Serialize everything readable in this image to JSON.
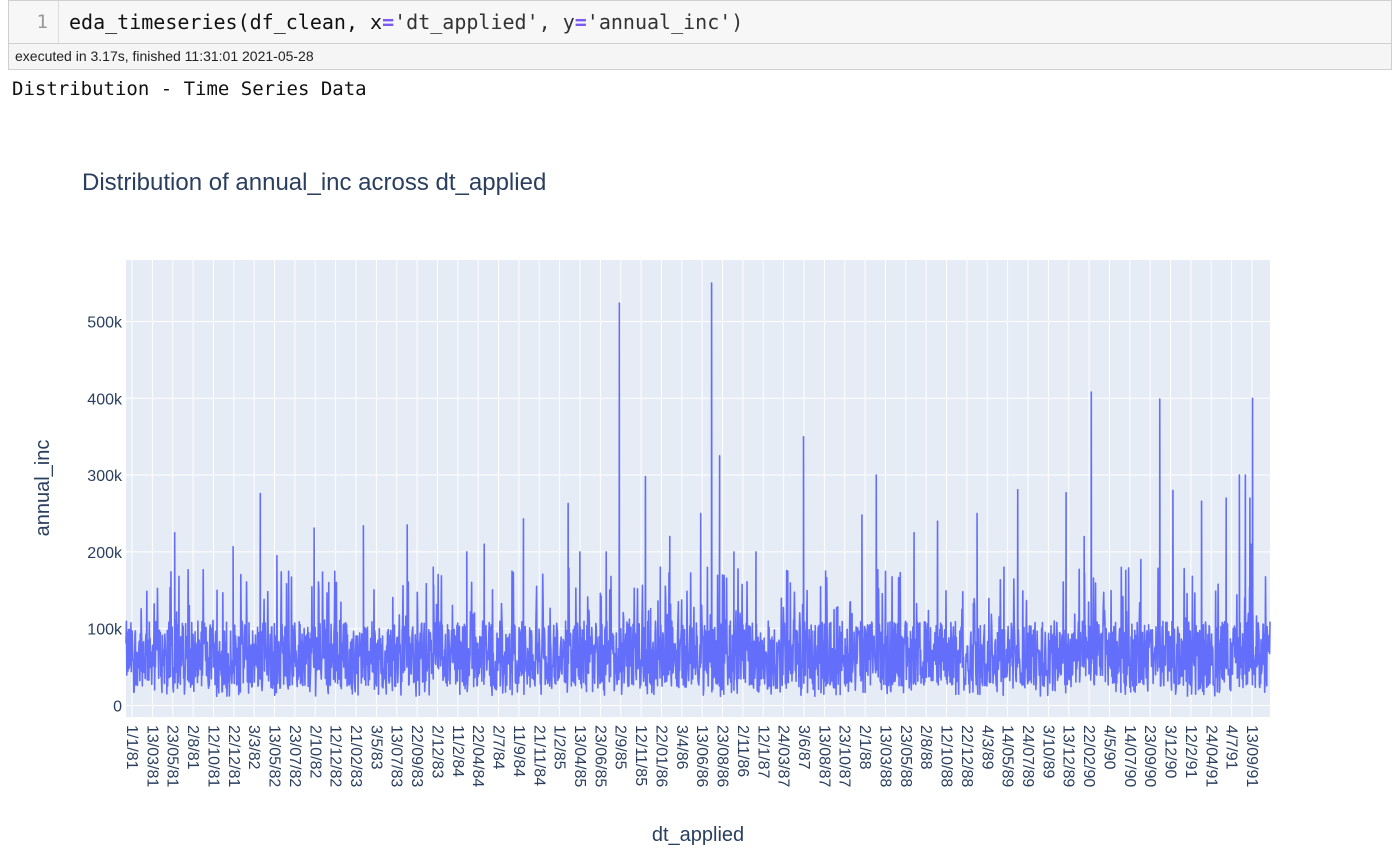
{
  "cell": {
    "line_number": "1",
    "code": {
      "func": "eda_timeseries(df_clean, x",
      "eq1": "=",
      "mid": "'dt_applied', y",
      "eq2": "=",
      "tail": "'annual_inc')"
    },
    "exec_info": "executed in 3.17s, finished 11:31:01 2021-05-28"
  },
  "output": {
    "heading": "Distribution - Time Series Data"
  },
  "colors": {
    "plot_bg": "#e5ecf6",
    "grid": "#ffffff",
    "line": "#636efa",
    "text": "#2a3f5f"
  },
  "chart_data": {
    "type": "line",
    "title": "Distribution of annual_inc across dt_applied",
    "xlabel": "dt_applied",
    "ylabel": "annual_inc",
    "ylim": [
      -15000,
      580000
    ],
    "y_ticks": [
      "0",
      "100k",
      "200k",
      "300k",
      "400k",
      "500k"
    ],
    "y_tick_values": [
      0,
      100000,
      200000,
      300000,
      400000,
      500000
    ],
    "x_tick_labels": [
      "1/1/81",
      "13/03/81",
      "23/05/81",
      "2/8/81",
      "12/10/81",
      "22/12/81",
      "3/3/82",
      "13/05/82",
      "23/07/82",
      "2/10/82",
      "12/12/82",
      "21/02/83",
      "3/5/83",
      "13/07/83",
      "22/09/83",
      "2/12/83",
      "11/2/84",
      "22/04/84",
      "2/7/84",
      "11/9/84",
      "21/11/84",
      "1/2/85",
      "13/04/85",
      "23/06/85",
      "2/9/85",
      "12/11/85",
      "22/01/86",
      "3/4/86",
      "13/06/86",
      "23/08/86",
      "2/11/86",
      "12/1/87",
      "24/03/87",
      "3/6/87",
      "13/08/87",
      "23/10/87",
      "2/1/88",
      "13/03/88",
      "23/05/88",
      "2/8/88",
      "12/10/88",
      "22/12/88",
      "4/3/89",
      "14/05/89",
      "24/07/89",
      "3/10/89",
      "13/12/89",
      "22/02/90",
      "4/5/90",
      "14/07/90",
      "23/09/90",
      "3/12/90",
      "12/2/91",
      "24/04/91",
      "4/7/91",
      "13/09/91"
    ],
    "x_range": [
      "1981-01-01",
      "1991-12-10"
    ],
    "series": [
      {
        "spikes": [
          {
            "x": "1981-06-20",
            "y": 225000
          },
          {
            "x": "1981-07-05",
            "y": 168000
          },
          {
            "x": "1981-11-15",
            "y": 150000
          },
          {
            "x": "1982-01-10",
            "y": 207000
          },
          {
            "x": "1982-04-15",
            "y": 276000
          },
          {
            "x": "1982-06-12",
            "y": 195000
          },
          {
            "x": "1982-10-20",
            "y": 231000
          },
          {
            "x": "1982-12-10",
            "y": 160000
          },
          {
            "x": "1983-04-10",
            "y": 234000
          },
          {
            "x": "1983-09-10",
            "y": 235000
          },
          {
            "x": "1983-12-10",
            "y": 180000
          },
          {
            "x": "1984-04-05",
            "y": 200000
          },
          {
            "x": "1984-06-05",
            "y": 210000
          },
          {
            "x": "1984-09-10",
            "y": 175000
          },
          {
            "x": "1984-10-20",
            "y": 243000
          },
          {
            "x": "1985-03-25",
            "y": 263000
          },
          {
            "x": "1985-05-05",
            "y": 200000
          },
          {
            "x": "1985-08-05",
            "y": 200000
          },
          {
            "x": "1985-09-20",
            "y": 524000
          },
          {
            "x": "1985-12-20",
            "y": 298000
          },
          {
            "x": "1986-02-10",
            "y": 180000
          },
          {
            "x": "1986-03-15",
            "y": 220000
          },
          {
            "x": "1986-07-01",
            "y": 250000
          },
          {
            "x": "1986-08-08",
            "y": 550000
          },
          {
            "x": "1986-09-05",
            "y": 325000
          },
          {
            "x": "1986-10-25",
            "y": 200000
          },
          {
            "x": "1987-01-10",
            "y": 200000
          },
          {
            "x": "1987-05-01",
            "y": 175000
          },
          {
            "x": "1987-06-25",
            "y": 350000
          },
          {
            "x": "1987-09-10",
            "y": 175000
          },
          {
            "x": "1988-01-15",
            "y": 248000
          },
          {
            "x": "1988-03-05",
            "y": 300000
          },
          {
            "x": "1988-07-15",
            "y": 225000
          },
          {
            "x": "1988-10-05",
            "y": 240000
          },
          {
            "x": "1989-02-20",
            "y": 250000
          },
          {
            "x": "1989-05-25",
            "y": 180000
          },
          {
            "x": "1989-07-12",
            "y": 281000
          },
          {
            "x": "1989-12-28",
            "y": 277000
          },
          {
            "x": "1990-03-01",
            "y": 220000
          },
          {
            "x": "1990-03-26",
            "y": 408000
          },
          {
            "x": "1990-09-15",
            "y": 190000
          },
          {
            "x": "1990-11-20",
            "y": 399000
          },
          {
            "x": "1991-01-05",
            "y": 280000
          },
          {
            "x": "1991-04-15",
            "y": 266000
          },
          {
            "x": "1991-07-10",
            "y": 270000
          },
          {
            "x": "1991-08-25",
            "y": 300000
          },
          {
            "x": "1991-09-15",
            "y": 300000
          },
          {
            "x": "1991-10-01",
            "y": 270000
          },
          {
            "x": "1991-10-05",
            "y": 210000
          },
          {
            "x": "1991-10-10",
            "y": 400000
          }
        ],
        "typical_band": [
          25000,
          110000
        ]
      }
    ]
  }
}
